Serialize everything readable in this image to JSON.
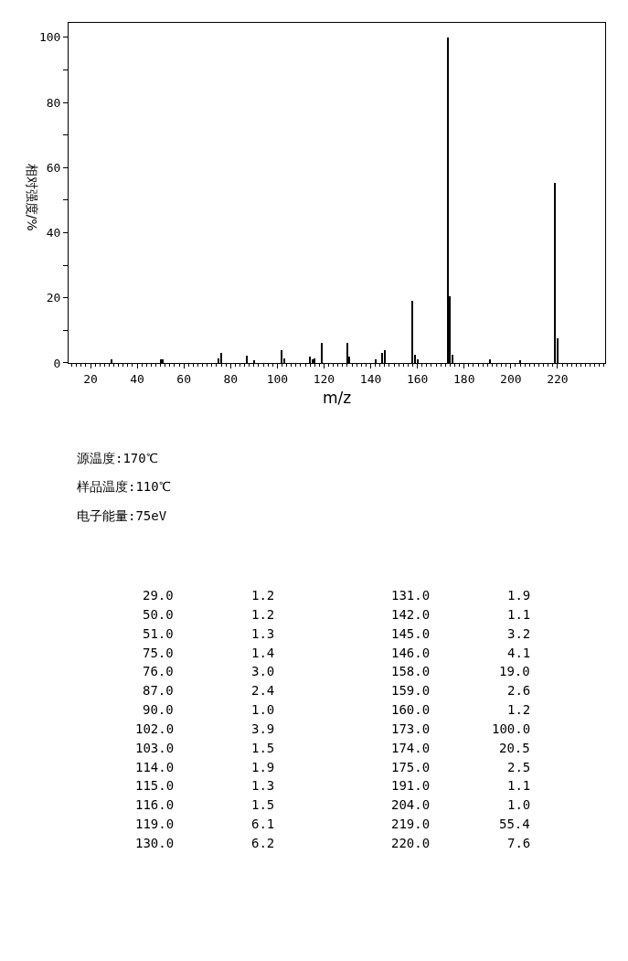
{
  "chart_data": [
    {
      "type": "bar",
      "xlabel": "m/z",
      "ylabel": "相对强度/%",
      "x": [
        29,
        50,
        51,
        75,
        76,
        87,
        90,
        102,
        103,
        114,
        115,
        116,
        119,
        130,
        131,
        142,
        145,
        146,
        158,
        159,
        160,
        173,
        174,
        175,
        191,
        204,
        219,
        220
      ],
      "values": [
        1.2,
        1.2,
        1.3,
        1.4,
        3.0,
        2.4,
        1.0,
        3.9,
        1.5,
        1.9,
        1.3,
        1.5,
        6.1,
        6.2,
        1.9,
        1.1,
        3.2,
        4.1,
        19.0,
        2.6,
        1.2,
        100.0,
        20.5,
        2.5,
        1.1,
        1.0,
        55.4,
        7.6
      ],
      "color": "#000000",
      "xlim": [
        10.6,
        240.4
      ],
      "ylim": [
        0,
        104.5
      ],
      "xticks": [
        20,
        40,
        60,
        80,
        100,
        120,
        140,
        160,
        180,
        200,
        220
      ],
      "yticks": [
        0,
        {
          "value": 10,
          "label": null
        },
        20,
        {
          "value": 30,
          "label": null
        },
        40,
        {
          "value": 50,
          "label": null
        },
        60,
        {
          "value": 70,
          "label": null
        },
        80,
        {
          "value": 90,
          "label": null
        },
        100
      ],
      "grid": false,
      "legend": false
    },
    {
      "type": "other",
      "annotations": [
        "源温度:170℃",
        "样品温度:110℃",
        "电子能量:75eV",
        "29.0",
        "1.2",
        "131.0",
        "1.9",
        "50.0",
        "1.2",
        "142.0",
        "1.1",
        "51.0",
        "1.3",
        "145.0",
        "3.2",
        "75.0",
        "1.4",
        "146.0",
        "4.1",
        "76.0",
        "3.0",
        "158.0",
        "19.0",
        "87.0",
        "2.4",
        "159.0",
        "2.6",
        "90.0",
        "1.0",
        "160.0",
        "1.2",
        "102.0",
        "3.9",
        "173.0",
        "100.0",
        "103.0",
        "1.5",
        "174.0",
        "20.5",
        "114.0",
        "1.9",
        "175.0",
        "2.5",
        "115.0",
        "1.3",
        "191.0",
        "1.1",
        "116.0",
        "1.5",
        "204.0",
        "1.0",
        "119.0",
        "6.1",
        "219.0",
        "55.4",
        "130.0",
        "6.2",
        "220.0",
        "7.6"
      ]
    }
  ]
}
